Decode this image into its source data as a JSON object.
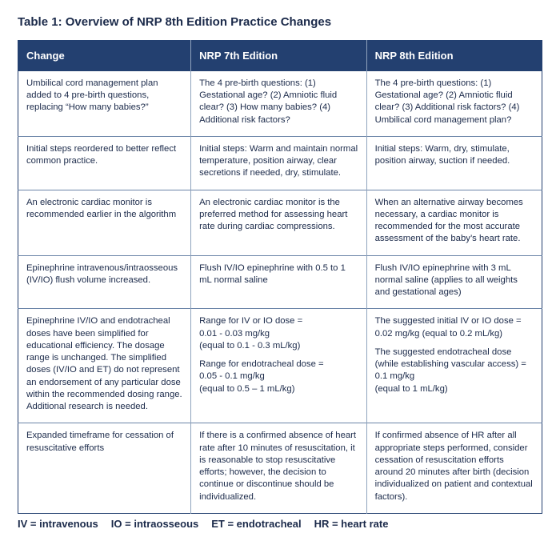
{
  "title": "Table 1: Overview of NRP 8th Edition Practice Changes",
  "columns": [
    "Change",
    "NRP 7th Edition",
    "NRP 8th Edition"
  ],
  "rows": [
    {
      "change": [
        "Umbilical cord management plan added to 4 pre-birth questions, replacing “How many babies?”"
      ],
      "ed7": [
        "The 4 pre-birth questions: (1) Gestational age? (2) Amniotic fluid clear? (3) How many babies? (4) Additional risk factors?"
      ],
      "ed8": [
        "The 4 pre-birth questions: (1) Gestational age? (2) Amniotic fluid clear? (3) Additional risk factors? (4) Umbilical cord management plan?"
      ]
    },
    {
      "change": [
        "Initial steps reordered to better reflect common practice."
      ],
      "ed7": [
        "Initial steps: Warm and maintain normal temperature, position airway, clear secretions if needed, dry, stimulate."
      ],
      "ed8": [
        "Initial steps: Warm, dry, stimulate, position airway, suction if needed."
      ]
    },
    {
      "change": [
        "An electronic cardiac monitor is recommended earlier in the algorithm"
      ],
      "ed7": [
        "An electronic cardiac monitor is the preferred method for assessing heart rate during cardiac compressions."
      ],
      "ed8": [
        "When an alternative airway becomes necessary, a cardiac monitor is recommended for the most accurate assessment of the baby’s heart rate."
      ]
    },
    {
      "change": [
        "Epinephrine intravenous/intraosseous (IV/IO) flush volume increased."
      ],
      "ed7": [
        "Flush IV/IO epinephrine with 0.5 to 1 mL normal saline"
      ],
      "ed8": [
        "Flush IV/IO epinephrine with 3 mL normal saline (applies to all weights and gestational ages)"
      ]
    },
    {
      "change": [
        "Epinephrine IV/IO and endotracheal doses have been simplified for educational efficiency. The dosage range is unchanged. The simplified doses (IV/IO and ET) do not represent an endorsement of any particular dose within the recommended dosing range. Additional research is needed."
      ],
      "ed7": [
        "Range for IV or IO dose =\n0.01 - 0.03 mg/kg\n(equal to 0.1 - 0.3 mL/kg)",
        "Range for endotracheal dose =\n0.05 - 0.1 mg/kg\n(equal to 0.5 – 1 mL/kg)"
      ],
      "ed8": [
        "The suggested initial IV or IO dose = 0.02 mg/kg (equal to 0.2 mL/kg)",
        "The suggested endotracheal dose (while establishing vascular access) =\n0.1 mg/kg\n(equal to 1 mL/kg)"
      ]
    },
    {
      "change": [
        "Expanded timeframe for cessation of resuscitative efforts"
      ],
      "ed7": [
        "If there is a confirmed absence of heart rate after 10 minutes of resuscitation, it is reasonable to stop resuscitative efforts; however, the decision to continue or discontinue should be individualized."
      ],
      "ed8": [
        "If confirmed absence of HR after all appropriate steps performed, consider cessation of resuscitation efforts around 20 minutes after birth (decision individualized on patient and contextual factors)."
      ]
    }
  ],
  "legend": [
    "IV = intravenous",
    "IO = intraosseous",
    "ET = endotracheal",
    "HR = heart rate"
  ]
}
